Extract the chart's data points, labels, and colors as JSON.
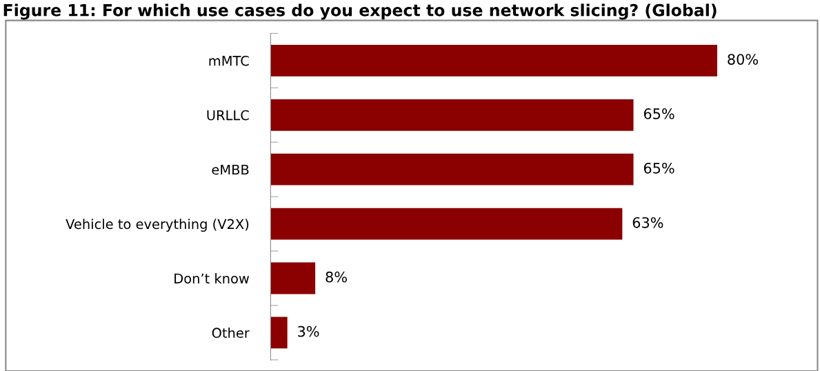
{
  "chart_data": {
    "type": "bar",
    "orientation": "horizontal",
    "title": "Figure 11: For which use cases do you expect to use network slicing? (Global)",
    "categories": [
      "mMTC",
      "URLLC",
      "eMBB",
      "Vehicle to everything (V2X)",
      "Don’t know",
      "Other"
    ],
    "values": [
      80,
      65,
      65,
      63,
      8,
      3
    ],
    "color": "#8b0000",
    "data_labels": true,
    "value_labels": [
      "80%",
      "65%",
      "65%",
      "63%",
      "8%",
      "3%"
    ],
    "grid": false,
    "legend": false
  }
}
